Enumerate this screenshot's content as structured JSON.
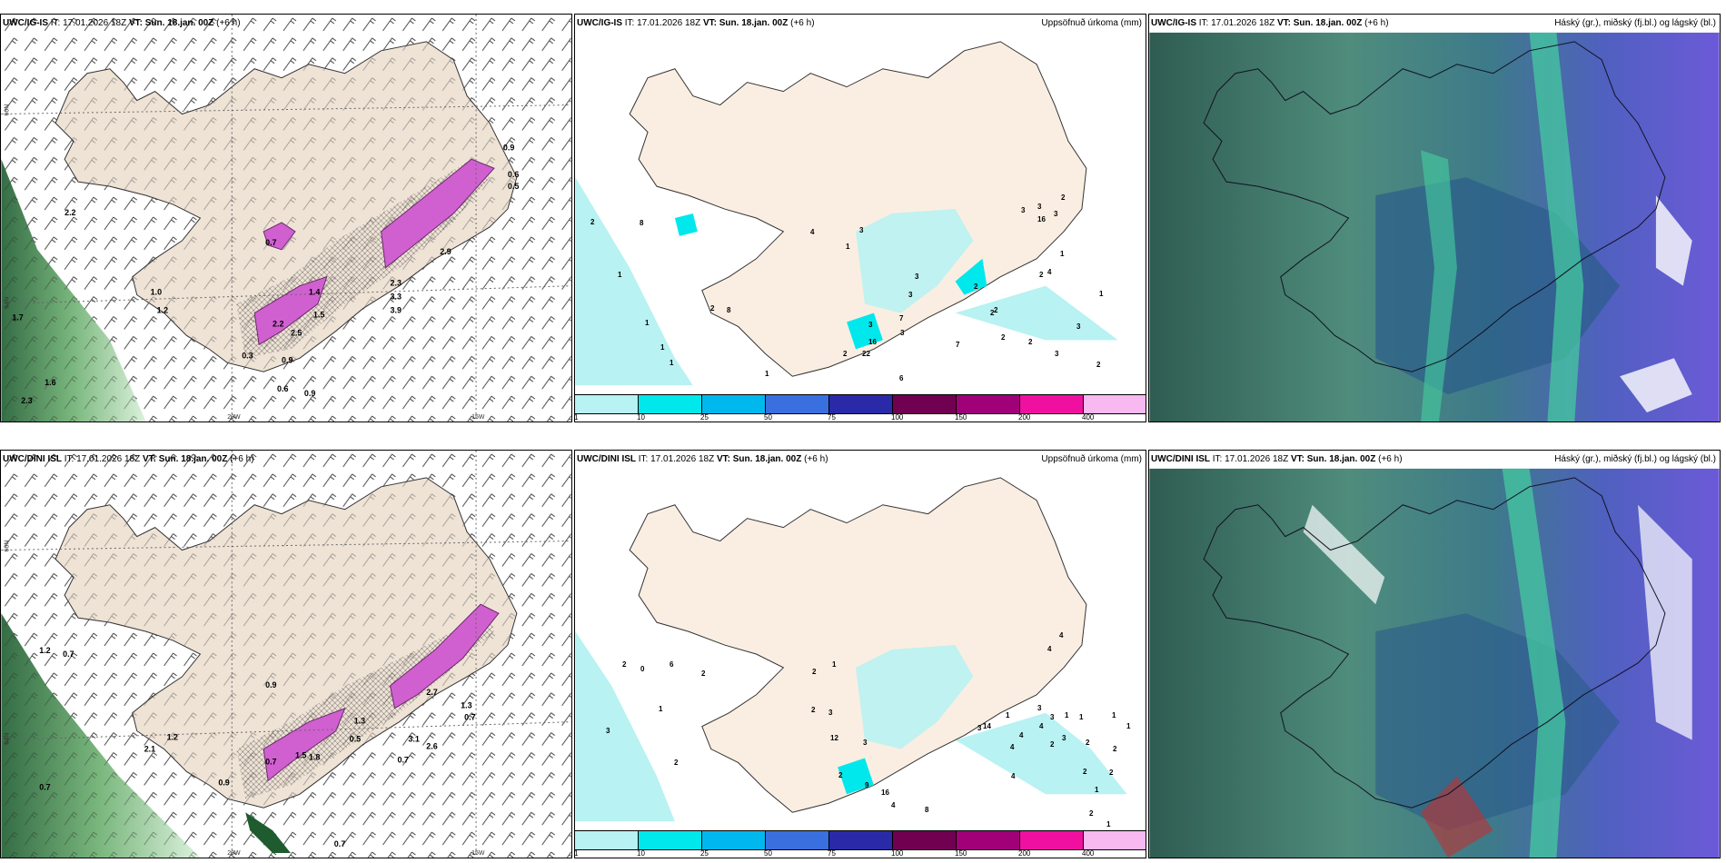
{
  "panels": [
    {
      "id": "wind-top",
      "model": "UWC/IG-IS",
      "it": "IT: 17.01.2026 18Z",
      "vt_label": "VT:",
      "vt": "Sun. 18.jan. 00Z",
      "lead": "(+6 h)",
      "title_right": ""
    },
    {
      "id": "precip-top",
      "model": "UWC/IG-IS",
      "it": "IT: 17.01.2026 18Z",
      "vt_label": "VT:",
      "vt": "Sun. 18.jan. 00Z",
      "lead": "(+6 h)",
      "title_right": "Uppsöfnuð úrkoma (mm)"
    },
    {
      "id": "cloud-top",
      "model": "UWC/IG-IS",
      "it": "IT: 17.01.2026 18Z",
      "vt_label": "VT:",
      "vt": "Sun. 18.jan. 00Z",
      "lead": "(+6 h)",
      "title_right": "Háský (gr.), miðský (fj.bl.) og lágský (bl.)"
    },
    {
      "id": "wind-bottom",
      "model": "UWC/DINI ISL",
      "it": "IT: 17.01.2026 18Z",
      "vt_label": "VT:",
      "vt": "Sun. 18.jan. 00Z",
      "lead": "(+6 h)",
      "title_right": ""
    },
    {
      "id": "precip-bottom",
      "model": "UWC/DINI ISL",
      "it": "IT: 17.01.2026 18Z",
      "vt_label": "VT:",
      "vt": "Sun. 18.jan. 00Z",
      "lead": "(+6 h)",
      "title_right": "Uppsöfnuð úrkoma (mm)"
    },
    {
      "id": "cloud-bottom",
      "model": "UWC/DINI ISL",
      "it": "IT: 17.01.2026 18Z",
      "vt_label": "VT:",
      "vt": "Sun. 18.jan. 00Z",
      "lead": "(+6 h)",
      "title_right": "Háský (gr.), miðský (fj.bl.) og lágský (bl.)"
    }
  ],
  "axis_labels": {
    "lon_20": "20W",
    "lon_15": "15W",
    "lat_66": "66N",
    "lat_64": "64N"
  },
  "colorbar": {
    "ticks": [
      "1",
      "10",
      "25",
      "50",
      "75",
      "100",
      "150",
      "200",
      "400"
    ],
    "colors": [
      "#b8f2f2",
      "#00e8ec",
      "#00b8ee",
      "#3a6fe0",
      "#2a2aa8",
      "#700050",
      "#a00078",
      "#f010a0",
      "#f8b8f0"
    ]
  },
  "precip_labels_top": [
    "2",
    "8",
    "1",
    "1",
    "1",
    "1",
    "1",
    "2",
    "8",
    "4",
    "3",
    "1",
    "3",
    "3",
    "7",
    "16",
    "22",
    "2",
    "6",
    "7",
    "2",
    "3",
    "3",
    "2",
    "2",
    "2",
    "2",
    "3",
    "2",
    "16",
    "3",
    "3",
    "3",
    "2",
    "1",
    "4",
    "3",
    "2",
    "1"
  ],
  "precip_labels_bottom": [
    "2",
    "0",
    "6",
    "3",
    "2",
    "2",
    "1",
    "2",
    "1",
    "3",
    "2",
    "3",
    "9",
    "12",
    "16",
    "4",
    "8",
    "2",
    "4",
    "4",
    "3",
    "3",
    "4",
    "4",
    "3",
    "1",
    "1",
    "2",
    "14",
    "1",
    "4",
    "4",
    "3",
    "2",
    "1",
    "1",
    "1",
    "2",
    "2",
    "2",
    "1",
    "2"
  ],
  "wind_labels_top": [
    "0.9",
    "0.6",
    "0.5",
    "0.7",
    "1.4",
    "2.3",
    "2.2",
    "1.5",
    "2.5",
    "3.3",
    "3.9",
    "2.9",
    "1.0",
    "1.2",
    "1.7",
    "1.6",
    "2.3",
    "0.6",
    "0.9",
    "0.3",
    "0.9",
    "2.2"
  ],
  "wind_labels_bottom": [
    "1.2",
    "0.7",
    "1.2",
    "2.1",
    "0.9",
    "0.7",
    "0.9",
    "1.5",
    "1.8",
    "1.3",
    "2.7",
    "0.7",
    "0.7",
    "0.5",
    "1.3",
    "0.7",
    "3.1",
    "2.6",
    "0.7"
  ]
}
